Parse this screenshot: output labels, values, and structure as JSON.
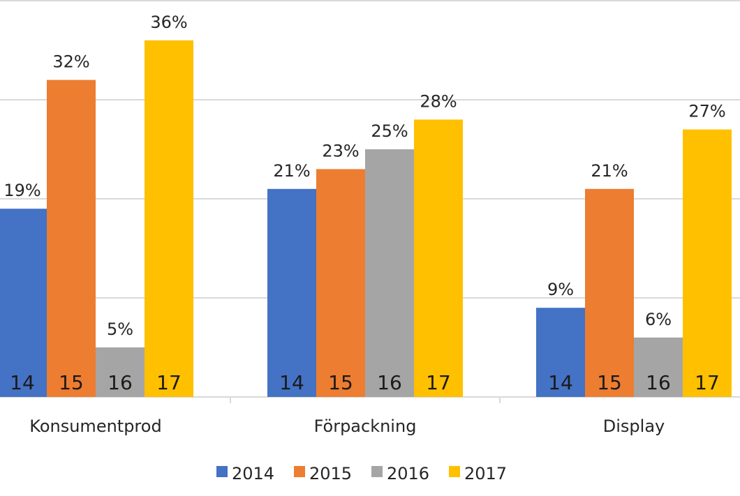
{
  "chart_data": {
    "type": "bar",
    "categories": [
      "Konsumentprod",
      "Förpackning",
      "Display"
    ],
    "series": [
      {
        "name": "2014",
        "short_label": "14",
        "color": "#4472C4",
        "values": [
          19,
          21,
          9
        ]
      },
      {
        "name": "2015",
        "short_label": "15",
        "color": "#ED7D31",
        "values": [
          32,
          23,
          21
        ]
      },
      {
        "name": "2016",
        "short_label": "16",
        "color": "#A5A5A5",
        "values": [
          5,
          25,
          6
        ]
      },
      {
        "name": "2017",
        "short_label": "17",
        "color": "#FFC000",
        "values": [
          36,
          28,
          27
        ]
      }
    ],
    "value_suffix": "%",
    "ylim": [
      0,
      40
    ],
    "grid": true,
    "legend_position": "bottom"
  }
}
